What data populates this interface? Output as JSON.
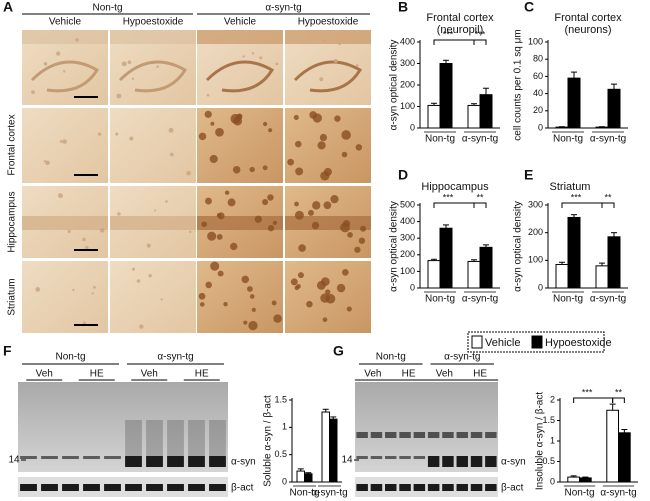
{
  "figure": {
    "panel_labels": [
      "A",
      "B",
      "C",
      "D",
      "E",
      "F",
      "G"
    ],
    "histology": {
      "groups": [
        "Non-tg",
        "α-syn-tg"
      ],
      "treatments": [
        "Vehicle",
        "Hypoestoxide",
        "Vehicle",
        "Hypoestoxide"
      ],
      "regions": [
        "Frontal cortex",
        "Hippocampus",
        "Striatum"
      ]
    },
    "blots": [
      {
        "groups": [
          "Non-tg",
          "α-syn-tg"
        ],
        "lanes": [
          "Veh",
          "HE",
          "Veh",
          "HE"
        ],
        "marker": "14",
        "bands": [
          "α-syn",
          "β-act"
        ]
      },
      {
        "groups": [
          "Non-tg",
          "α-syn-tg"
        ],
        "lanes": [
          "Veh",
          "HE",
          "Veh",
          "HE"
        ],
        "marker": "14",
        "bands": [
          "α-syn",
          "β-act"
        ]
      }
    ]
  },
  "chart_data": [
    {
      "type": "bar",
      "title": "Frontal cortex",
      "subtitle": "(neuropil)",
      "y_label": "α-syn optical density",
      "categories": [
        "Non-tg",
        "α-syn-tg"
      ],
      "series": [
        {
          "color": "#ffffff",
          "values": [
            105,
            105
          ],
          "errors": [
            10,
            8
          ]
        },
        {
          "color": "#000000",
          "values": [
            300,
            155
          ],
          "errors": [
            15,
            30
          ]
        }
      ],
      "ylim": [
        0,
        400
      ],
      "yticks": [
        0,
        100,
        200,
        300,
        400
      ],
      "annotations": [
        "***",
        "***"
      ]
    },
    {
      "type": "bar",
      "title": "Frontal cortex",
      "subtitle": "(neurons)",
      "y_label": "cell counts per 0.1 sq μm",
      "categories": [
        "Non-tg",
        "α-syn-tg"
      ],
      "series": [
        {
          "color": "#ffffff",
          "values": [
            1,
            1
          ],
          "errors": [
            0.5,
            0.5
          ]
        },
        {
          "color": "#000000",
          "values": [
            58,
            45
          ],
          "errors": [
            7,
            6
          ]
        }
      ],
      "ylim": [
        0,
        100
      ],
      "yticks": [
        0,
        20,
        40,
        60,
        80,
        100
      ]
    },
    {
      "type": "bar",
      "title": "Hippocampus",
      "y_label": "α-syn optical density",
      "categories": [
        "Non-tg",
        "α-syn-tg"
      ],
      "series": [
        {
          "color": "#ffffff",
          "values": [
            165,
            160
          ],
          "errors": [
            8,
            10
          ]
        },
        {
          "color": "#000000",
          "values": [
            360,
            245
          ],
          "errors": [
            20,
            15
          ]
        }
      ],
      "ylim": [
        0,
        500
      ],
      "yticks": [
        0,
        100,
        200,
        300,
        400,
        500
      ],
      "annotations": [
        "***",
        "**"
      ]
    },
    {
      "type": "bar",
      "title": "Striatum",
      "y_label": "α-syn optical density",
      "categories": [
        "Non-tg",
        "α-syn-tg"
      ],
      "series": [
        {
          "name": "Vehicle",
          "color": "#ffffff",
          "values": [
            85,
            80
          ],
          "errors": [
            8,
            10
          ]
        },
        {
          "name": "Hypoestoxide",
          "color": "#000000",
          "values": [
            255,
            185
          ],
          "errors": [
            10,
            15
          ]
        }
      ],
      "ylim": [
        0,
        300
      ],
      "yticks": [
        0,
        100,
        200,
        300
      ],
      "annotations": [
        "***",
        "**"
      ]
    },
    {
      "type": "bar",
      "y_label": "Soluble α-syn / β-act",
      "categories": [
        "Non-tg",
        "α-syn-tg"
      ],
      "series": [
        {
          "color": "#ffffff",
          "values": [
            0.2,
            1.28
          ],
          "errors": [
            0.04,
            0.05
          ]
        },
        {
          "color": "#000000",
          "values": [
            0.15,
            1.15
          ],
          "errors": [
            0.02,
            0.04
          ]
        }
      ],
      "ylim": [
        0,
        1.5
      ],
      "yticks": [
        0,
        0.5,
        1,
        1.5
      ]
    },
    {
      "type": "bar",
      "y_label": "Insoluble α-syn / β-act",
      "categories": [
        "Non-tg",
        "α-syn-tg"
      ],
      "series": [
        {
          "color": "#ffffff",
          "values": [
            0.12,
            1.75
          ],
          "errors": [
            0.03,
            0.15
          ]
        },
        {
          "color": "#000000",
          "values": [
            0.1,
            1.2
          ],
          "errors": [
            0.02,
            0.08
          ]
        }
      ],
      "ylim": [
        0,
        2
      ],
      "yticks": [
        0,
        0.5,
        1,
        1.5,
        2
      ],
      "annotations": [
        "***",
        "**"
      ]
    }
  ]
}
